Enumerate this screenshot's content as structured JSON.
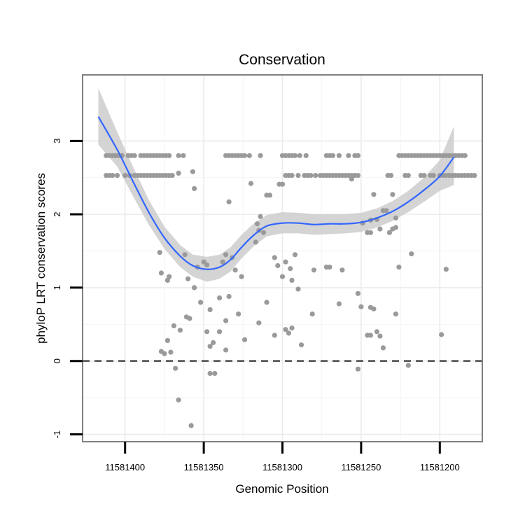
{
  "chart_data": {
    "type": "scatter",
    "title": "Conservation",
    "xlabel": "Genomic Position",
    "ylabel": "phyloP LRT conservation scores",
    "x_reversed": true,
    "xlim": [
      11581427,
      11581173
    ],
    "ylim": [
      -1.1,
      3.9
    ],
    "x_ticks": [
      11581400,
      11581350,
      11581300,
      11581250,
      11581200
    ],
    "x_tick_labels": [
      "11581400",
      "11581350",
      "11581300",
      "11581250",
      "11581200"
    ],
    "y_ticks": [
      -1,
      0,
      1,
      2,
      3
    ],
    "y_tick_labels": [
      "-1",
      "0",
      "1",
      "2",
      "3"
    ],
    "grid": true,
    "reference_line": {
      "y": 0,
      "style": "dashed"
    },
    "point_color": "#9a9a9a",
    "smooth_color": "#3366ff",
    "ribbon_color": "#cccccc",
    "points": [
      [
        11581412,
        2.8
      ],
      [
        11581410,
        2.8
      ],
      [
        11581408,
        2.8
      ],
      [
        11581406,
        2.8
      ],
      [
        11581404,
        2.8
      ],
      [
        11581402,
        2.8
      ],
      [
        11581398,
        2.8
      ],
      [
        11581396,
        2.8
      ],
      [
        11581394,
        2.8
      ],
      [
        11581390,
        2.8
      ],
      [
        11581388,
        2.8
      ],
      [
        11581386,
        2.8
      ],
      [
        11581384,
        2.8
      ],
      [
        11581382,
        2.8
      ],
      [
        11581380,
        2.8
      ],
      [
        11581378,
        2.8
      ],
      [
        11581376,
        2.8
      ],
      [
        11581374,
        2.8
      ],
      [
        11581372,
        2.8
      ],
      [
        11581366,
        2.8
      ],
      [
        11581363,
        2.8
      ],
      [
        11581336,
        2.8
      ],
      [
        11581334,
        2.8
      ],
      [
        11581332,
        2.8
      ],
      [
        11581330,
        2.8
      ],
      [
        11581328,
        2.8
      ],
      [
        11581326,
        2.8
      ],
      [
        11581324,
        2.8
      ],
      [
        11581321,
        2.8
      ],
      [
        11581314,
        2.8
      ],
      [
        11581300,
        2.8
      ],
      [
        11581298,
        2.8
      ],
      [
        11581296,
        2.8
      ],
      [
        11581294,
        2.8
      ],
      [
        11581292,
        2.8
      ],
      [
        11581289,
        2.8
      ],
      [
        11581285,
        2.8
      ],
      [
        11581272,
        2.8
      ],
      [
        11581270,
        2.8
      ],
      [
        11581268,
        2.8
      ],
      [
        11581264,
        2.8
      ],
      [
        11581258,
        2.8
      ],
      [
        11581254,
        2.8
      ],
      [
        11581252,
        2.8
      ],
      [
        11581226,
        2.8
      ],
      [
        11581224,
        2.8
      ],
      [
        11581222,
        2.8
      ],
      [
        11581220,
        2.8
      ],
      [
        11581218,
        2.8
      ],
      [
        11581216,
        2.8
      ],
      [
        11581214,
        2.8
      ],
      [
        11581212,
        2.8
      ],
      [
        11581210,
        2.8
      ],
      [
        11581208,
        2.8
      ],
      [
        11581206,
        2.8
      ],
      [
        11581204,
        2.8
      ],
      [
        11581202,
        2.8
      ],
      [
        11581200,
        2.8
      ],
      [
        11581198,
        2.8
      ],
      [
        11581196,
        2.8
      ],
      [
        11581194,
        2.8
      ],
      [
        11581192,
        2.8
      ],
      [
        11581190,
        2.8
      ],
      [
        11581188,
        2.8
      ],
      [
        11581186,
        2.8
      ],
      [
        11581184,
        2.8
      ],
      [
        11581412,
        2.53
      ],
      [
        11581410,
        2.53
      ],
      [
        11581408,
        2.53
      ],
      [
        11581405,
        2.53
      ],
      [
        11581400,
        2.53
      ],
      [
        11581397,
        2.53
      ],
      [
        11581394,
        2.53
      ],
      [
        11581392,
        2.53
      ],
      [
        11581390,
        2.53
      ],
      [
        11581388,
        2.53
      ],
      [
        11581386,
        2.53
      ],
      [
        11581384,
        2.53
      ],
      [
        11581382,
        2.53
      ],
      [
        11581380,
        2.53
      ],
      [
        11581378,
        2.53
      ],
      [
        11581376,
        2.53
      ],
      [
        11581374,
        2.53
      ],
      [
        11581372,
        2.53
      ],
      [
        11581370,
        2.53
      ],
      [
        11581298,
        2.53
      ],
      [
        11581296,
        2.53
      ],
      [
        11581294,
        2.53
      ],
      [
        11581290,
        2.53
      ],
      [
        11581286,
        2.53
      ],
      [
        11581284,
        2.53
      ],
      [
        11581282,
        2.53
      ],
      [
        11581279,
        2.53
      ],
      [
        11581276,
        2.53
      ],
      [
        11581274,
        2.53
      ],
      [
        11581272,
        2.53
      ],
      [
        11581270,
        2.53
      ],
      [
        11581268,
        2.53
      ],
      [
        11581266,
        2.53
      ],
      [
        11581264,
        2.53
      ],
      [
        11581262,
        2.53
      ],
      [
        11581260,
        2.53
      ],
      [
        11581258,
        2.53
      ],
      [
        11581256,
        2.53
      ],
      [
        11581254,
        2.53
      ],
      [
        11581252,
        2.53
      ],
      [
        11581233,
        2.53
      ],
      [
        11581231,
        2.53
      ],
      [
        11581222,
        2.53
      ],
      [
        11581220,
        2.53
      ],
      [
        11581212,
        2.53
      ],
      [
        11581210,
        2.53
      ],
      [
        11581206,
        2.53
      ],
      [
        11581204,
        2.53
      ],
      [
        11581200,
        2.53
      ],
      [
        11581198,
        2.53
      ],
      [
        11581196,
        2.53
      ],
      [
        11581194,
        2.53
      ],
      [
        11581192,
        2.53
      ],
      [
        11581190,
        2.53
      ],
      [
        11581188,
        2.53
      ],
      [
        11581186,
        2.53
      ],
      [
        11581184,
        2.53
      ],
      [
        11581182,
        2.53
      ],
      [
        11581180,
        2.53
      ],
      [
        11581178,
        2.53
      ],
      [
        11581366,
        2.56
      ],
      [
        11581357,
        2.58
      ],
      [
        11581356,
        2.35
      ],
      [
        11581334,
        2.17
      ],
      [
        11581320,
        2.42
      ],
      [
        11581316,
        1.87
      ],
      [
        11581315,
        1.78
      ],
      [
        11581314,
        1.97
      ],
      [
        11581310,
        2.26
      ],
      [
        11581308,
        2.26
      ],
      [
        11581302,
        2.41
      ],
      [
        11581300,
        2.41
      ],
      [
        11581256,
        2.48
      ],
      [
        11581242,
        2.27
      ],
      [
        11581236,
        2.05
      ],
      [
        11581234,
        2.05
      ],
      [
        11581230,
        2.27
      ],
      [
        11581228,
        1.95
      ],
      [
        11581249,
        1.88
      ],
      [
        11581246,
        1.75
      ],
      [
        11581244,
        1.75
      ],
      [
        11581244,
        1.92
      ],
      [
        11581240,
        1.93
      ],
      [
        11581238,
        1.8
      ],
      [
        11581232,
        1.75
      ],
      [
        11581230,
        1.8
      ],
      [
        11581228,
        1.82
      ],
      [
        11581378,
        1.48
      ],
      [
        11581377,
        1.2
      ],
      [
        11581373,
        1.1
      ],
      [
        11581372,
        1.15
      ],
      [
        11581362,
        1.45
      ],
      [
        11581354,
        1.28
      ],
      [
        11581350,
        1.35
      ],
      [
        11581348,
        1.31
      ],
      [
        11581338,
        1.35
      ],
      [
        11581336,
        1.45
      ],
      [
        11581332,
        1.41
      ],
      [
        11581330,
        1.24
      ],
      [
        11581326,
        1.15
      ],
      [
        11581317,
        1.62
      ],
      [
        11581312,
        1.75
      ],
      [
        11581305,
        1.41
      ],
      [
        11581303,
        1.3
      ],
      [
        11581300,
        1.15
      ],
      [
        11581298,
        1.35
      ],
      [
        11581295,
        1.26
      ],
      [
        11581294,
        1.1
      ],
      [
        11581292,
        1.45
      ],
      [
        11581280,
        1.24
      ],
      [
        11581272,
        1.28
      ],
      [
        11581270,
        1.28
      ],
      [
        11581262,
        1.24
      ],
      [
        11581226,
        1.28
      ],
      [
        11581218,
        1.46
      ],
      [
        11581196,
        1.25
      ],
      [
        11581360,
        1.12
      ],
      [
        11581356,
        1.0
      ],
      [
        11581346,
        0.7
      ],
      [
        11581340,
        0.86
      ],
      [
        11581336,
        0.55
      ],
      [
        11581334,
        0.88
      ],
      [
        11581328,
        0.64
      ],
      [
        11581324,
        0.29
      ],
      [
        11581373,
        0.28
      ],
      [
        11581365,
        0.42
      ],
      [
        11581361,
        0.6
      ],
      [
        11581359,
        0.58
      ],
      [
        11581352,
        0.8
      ],
      [
        11581348,
        0.4
      ],
      [
        11581346,
        0.2
      ],
      [
        11581344,
        0.25
      ],
      [
        11581340,
        0.4
      ],
      [
        11581336,
        0.15
      ],
      [
        11581377,
        0.13
      ],
      [
        11581375,
        0.1
      ],
      [
        11581371,
        0.12
      ],
      [
        11581369,
        0.48
      ],
      [
        11581368,
        -0.1
      ],
      [
        11581315,
        0.52
      ],
      [
        11581310,
        0.8
      ],
      [
        11581305,
        0.35
      ],
      [
        11581298,
        0.43
      ],
      [
        11581296,
        0.38
      ],
      [
        11581294,
        0.45
      ],
      [
        11581290,
        0.98
      ],
      [
        11581288,
        0.22
      ],
      [
        11581281,
        0.64
      ],
      [
        11581264,
        0.78
      ],
      [
        11581252,
        0.92
      ],
      [
        11581250,
        0.74
      ],
      [
        11581246,
        0.35
      ],
      [
        11581244,
        0.35
      ],
      [
        11581240,
        0.4
      ],
      [
        11581238,
        0.34
      ],
      [
        11581236,
        0.18
      ],
      [
        11581228,
        0.64
      ],
      [
        11581244,
        0.73
      ],
      [
        11581242,
        0.71
      ],
      [
        11581199,
        0.36
      ],
      [
        11581346,
        -0.17
      ],
      [
        11581343,
        -0.17
      ],
      [
        11581366,
        -0.53
      ],
      [
        11581358,
        -0.88
      ],
      [
        11581252,
        -0.11
      ],
      [
        11581220,
        -0.06
      ]
    ],
    "smooth": [
      [
        11581417,
        3.33
      ],
      [
        11581405,
        2.88
      ],
      [
        11581395,
        2.45
      ],
      [
        11581385,
        2.03
      ],
      [
        11581375,
        1.68
      ],
      [
        11581365,
        1.43
      ],
      [
        11581357,
        1.3
      ],
      [
        11581348,
        1.25
      ],
      [
        11581340,
        1.28
      ],
      [
        11581333,
        1.38
      ],
      [
        11581326,
        1.55
      ],
      [
        11581318,
        1.72
      ],
      [
        11581310,
        1.84
      ],
      [
        11581300,
        1.88
      ],
      [
        11581290,
        1.88
      ],
      [
        11581280,
        1.86
      ],
      [
        11581270,
        1.87
      ],
      [
        11581260,
        1.87
      ],
      [
        11581250,
        1.89
      ],
      [
        11581240,
        1.95
      ],
      [
        11581230,
        2.04
      ],
      [
        11581220,
        2.17
      ],
      [
        11581210,
        2.33
      ],
      [
        11581200,
        2.52
      ],
      [
        11581191,
        2.78
      ]
    ],
    "ribbon": [
      [
        11581417,
        3.72,
        2.95
      ],
      [
        11581405,
        3.12,
        2.65
      ],
      [
        11581395,
        2.65,
        2.25
      ],
      [
        11581385,
        2.2,
        1.86
      ],
      [
        11581375,
        1.83,
        1.53
      ],
      [
        11581365,
        1.58,
        1.28
      ],
      [
        11581357,
        1.45,
        1.15
      ],
      [
        11581348,
        1.42,
        1.08
      ],
      [
        11581340,
        1.45,
        1.12
      ],
      [
        11581333,
        1.55,
        1.22
      ],
      [
        11581326,
        1.72,
        1.4
      ],
      [
        11581318,
        1.88,
        1.57
      ],
      [
        11581310,
        1.99,
        1.7
      ],
      [
        11581300,
        2.03,
        1.74
      ],
      [
        11581290,
        2.02,
        1.74
      ],
      [
        11581280,
        2.0,
        1.72
      ],
      [
        11581270,
        2.0,
        1.73
      ],
      [
        11581260,
        2.0,
        1.74
      ],
      [
        11581250,
        2.02,
        1.76
      ],
      [
        11581240,
        2.08,
        1.82
      ],
      [
        11581230,
        2.18,
        1.91
      ],
      [
        11581220,
        2.32,
        2.03
      ],
      [
        11581210,
        2.5,
        2.17
      ],
      [
        11581200,
        2.74,
        2.32
      ],
      [
        11581191,
        3.2,
        2.4
      ]
    ]
  }
}
